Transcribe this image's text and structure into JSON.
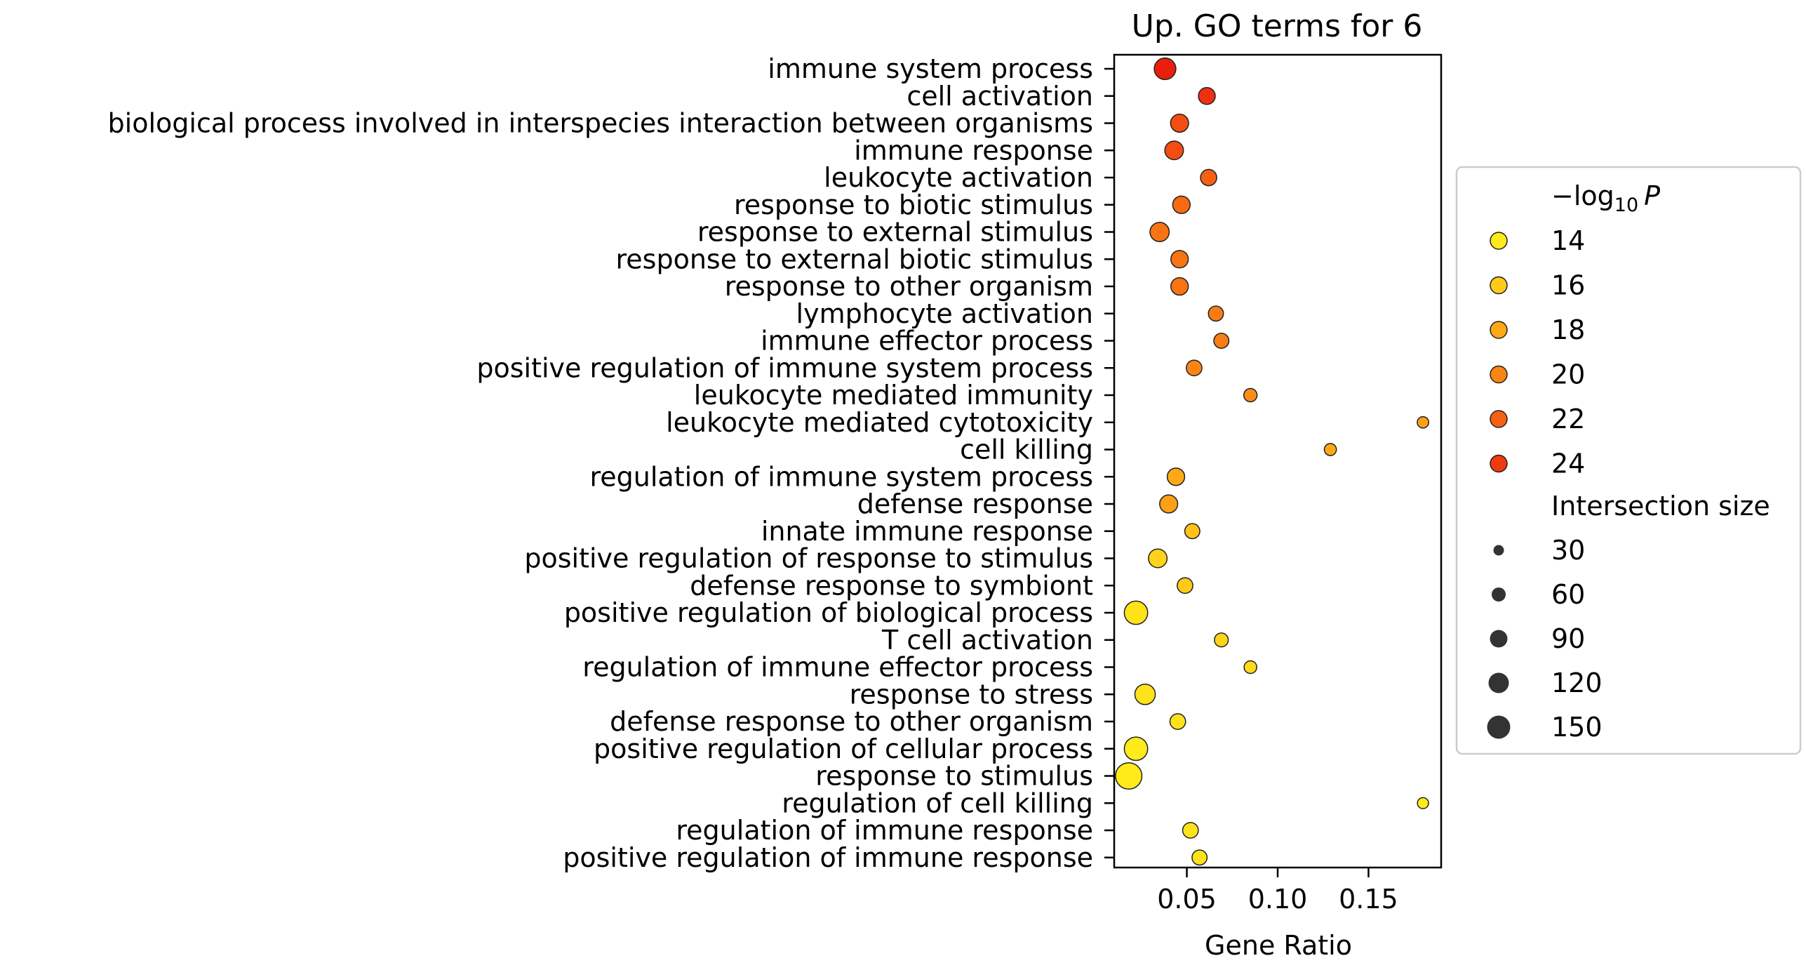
{
  "chart_data": {
    "type": "scatter",
    "title": "Up. GO terms for 6",
    "xlabel": "Gene Ratio",
    "ylabel": "",
    "xlim": [
      0.01,
      0.19
    ],
    "x_ticks": [
      0.05,
      0.1,
      0.15
    ],
    "x_tick_labels": [
      "0.05",
      "0.10",
      "0.15"
    ],
    "grid": false,
    "legend_placement": "right",
    "color_legend": {
      "title_prefix": "−log",
      "title_sub": "10",
      "title_var": "P",
      "entries": [
        {
          "label": "14",
          "color": "#ffeb1a"
        },
        {
          "label": "16",
          "color": "#ffcb18"
        },
        {
          "label": "18",
          "color": "#fea816"
        },
        {
          "label": "20",
          "color": "#f98614"
        },
        {
          "label": "22",
          "color": "#f66012"
        },
        {
          "label": "24",
          "color": "#f03a10"
        }
      ]
    },
    "size_legend": {
      "title": "Intersection size",
      "entries": [
        {
          "label": "30",
          "value": 30
        },
        {
          "label": "60",
          "value": 60
        },
        {
          "label": "90",
          "value": 90
        },
        {
          "label": "120",
          "value": 120
        },
        {
          "label": "150",
          "value": 150
        }
      ]
    },
    "points": [
      {
        "term": "immune system process",
        "x": 0.038,
        "neglog10p": 25.5,
        "size": 120
      },
      {
        "term": "cell activation",
        "x": 0.061,
        "neglog10p": 24.5,
        "size": 80
      },
      {
        "term": "biological process involved in interspecies interaction between organisms",
        "x": 0.046,
        "neglog10p": 23.0,
        "size": 90
      },
      {
        "term": "immune response",
        "x": 0.043,
        "neglog10p": 23.0,
        "size": 95
      },
      {
        "term": "leukocyte activation",
        "x": 0.062,
        "neglog10p": 22.0,
        "size": 75
      },
      {
        "term": "response to biotic stimulus",
        "x": 0.047,
        "neglog10p": 21.5,
        "size": 85
      },
      {
        "term": "response to external stimulus",
        "x": 0.035,
        "neglog10p": 21.0,
        "size": 100
      },
      {
        "term": "response to external biotic stimulus",
        "x": 0.046,
        "neglog10p": 21.0,
        "size": 85
      },
      {
        "term": "response to other organism",
        "x": 0.046,
        "neglog10p": 21.0,
        "size": 85
      },
      {
        "term": "lymphocyte activation",
        "x": 0.066,
        "neglog10p": 20.5,
        "size": 65
      },
      {
        "term": "immune effector process",
        "x": 0.069,
        "neglog10p": 20.5,
        "size": 65
      },
      {
        "term": "positive regulation of immune system process",
        "x": 0.054,
        "neglog10p": 20.0,
        "size": 70
      },
      {
        "term": "leukocyte mediated immunity",
        "x": 0.085,
        "neglog10p": 19.5,
        "size": 50
      },
      {
        "term": "leukocyte mediated cytotoxicity",
        "x": 0.18,
        "neglog10p": 18.5,
        "size": 35
      },
      {
        "term": "cell killing",
        "x": 0.129,
        "neglog10p": 18.0,
        "size": 40
      },
      {
        "term": "regulation of immune system process",
        "x": 0.044,
        "neglog10p": 18.0,
        "size": 85
      },
      {
        "term": "defense response",
        "x": 0.04,
        "neglog10p": 18.5,
        "size": 90
      },
      {
        "term": "innate immune response",
        "x": 0.053,
        "neglog10p": 16.5,
        "size": 65
      },
      {
        "term": "positive regulation of response to stimulus",
        "x": 0.034,
        "neglog10p": 15.5,
        "size": 95
      },
      {
        "term": "defense response to symbiont",
        "x": 0.049,
        "neglog10p": 16.0,
        "size": 70
      },
      {
        "term": "positive regulation of biological process",
        "x": 0.022,
        "neglog10p": 14.5,
        "size": 135
      },
      {
        "term": "T cell activation",
        "x": 0.069,
        "neglog10p": 15.5,
        "size": 55
      },
      {
        "term": "regulation of immune effector process",
        "x": 0.085,
        "neglog10p": 15.0,
        "size": 45
      },
      {
        "term": "response to stress",
        "x": 0.027,
        "neglog10p": 14.5,
        "size": 110
      },
      {
        "term": "defense response to other organism",
        "x": 0.045,
        "neglog10p": 14.5,
        "size": 70
      },
      {
        "term": "positive regulation of cellular process",
        "x": 0.022,
        "neglog10p": 14.0,
        "size": 135
      },
      {
        "term": "response to stimulus",
        "x": 0.018,
        "neglog10p": 14.0,
        "size": 160
      },
      {
        "term": "regulation of cell killing",
        "x": 0.18,
        "neglog10p": 14.0,
        "size": 32
      },
      {
        "term": "regulation of immune response",
        "x": 0.052,
        "neglog10p": 14.5,
        "size": 70
      },
      {
        "term": "positive regulation of immune response",
        "x": 0.057,
        "neglog10p": 14.5,
        "size": 65
      }
    ]
  }
}
